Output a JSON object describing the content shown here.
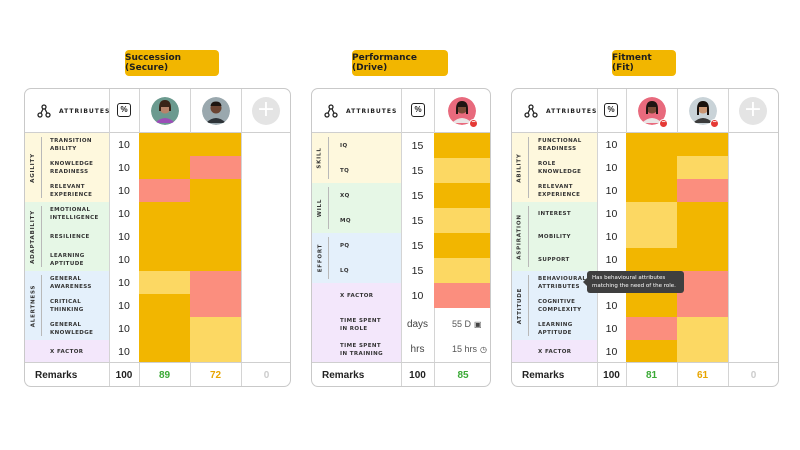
{
  "titles": {
    "succession": "Succession (Secure)",
    "performance": "Performance (Drive)",
    "fitment": "Fitment (Fit)"
  },
  "colors": {
    "high": "#f2b600",
    "mid": "#fcd863",
    "low": "#fb8e7e",
    "score_green": "#3aa935",
    "score_amber": "#e8a500",
    "score_grey": "#cccccc",
    "agility_bg": "#fef8dd",
    "adaptability_bg": "#e6f7e6",
    "alertness_bg": "#e4f0fb",
    "xfactor_bg": "#f3e7fb"
  },
  "common": {
    "attributes_label": "ATTRIBUTES",
    "percent_icon": "%",
    "add_icon": "+",
    "remarks_label": "Remarks",
    "remarks_weight": "100"
  },
  "succession": {
    "groups": [
      "AGILITY",
      "ADAPTABILITY",
      "ALERTNESS"
    ],
    "rows": [
      {
        "name": "TRANSITION\nABILITY",
        "weight": "10"
      },
      {
        "name": "KNOWLEDGE\nREADINESS",
        "weight": "10"
      },
      {
        "name": "RELEVANT\nEXPERIENCE",
        "weight": "10"
      },
      {
        "name": "EMOTIONAL\nINTELLIGENCE",
        "weight": "10"
      },
      {
        "name": "RESILIENCE",
        "weight": "10"
      },
      {
        "name": "LEARNING\nAPTITUDE",
        "weight": "10"
      },
      {
        "name": "GENERAL\nAWARENESS",
        "weight": "10"
      },
      {
        "name": "CRITICAL\nTHINKING",
        "weight": "10"
      },
      {
        "name": "GENERAL\nKNOWLEDGE",
        "weight": "10"
      },
      {
        "name": "X FACTOR",
        "weight": "10"
      }
    ],
    "cells": [
      [
        "high",
        "high"
      ],
      [
        "high",
        "low"
      ],
      [
        "low",
        "high"
      ],
      [
        "high",
        "high"
      ],
      [
        "high",
        "high"
      ],
      [
        "high",
        "high"
      ],
      [
        "mid",
        "low"
      ],
      [
        "high",
        "low"
      ],
      [
        "high",
        "mid"
      ],
      [
        "high",
        "mid"
      ]
    ],
    "scores": [
      "89",
      "72",
      "0"
    ]
  },
  "performance": {
    "groups": [
      "SKILL",
      "WILL",
      "EFFORT"
    ],
    "rows": [
      {
        "name": "IQ",
        "weight": "15"
      },
      {
        "name": "TQ",
        "weight": "15"
      },
      {
        "name": "XQ",
        "weight": "15"
      },
      {
        "name": "MQ",
        "weight": "15"
      },
      {
        "name": "PQ",
        "weight": "15"
      },
      {
        "name": "LQ",
        "weight": "15"
      },
      {
        "name": "X FACTOR",
        "weight": "10"
      }
    ],
    "cells": [
      "high",
      "mid",
      "high",
      "mid",
      "high",
      "mid",
      "low"
    ],
    "time_role": {
      "name": "TIME SPENT\nIN ROLE",
      "unit": "days",
      "value": "55 D"
    },
    "time_training": {
      "name": "TIME SPENT\nIN TRAINING",
      "unit": "hrs",
      "value": "15 hrs"
    },
    "score": "85"
  },
  "fitment": {
    "groups": [
      "ABILITY",
      "ASPIRATION",
      "ATTITUDE"
    ],
    "rows": [
      {
        "name": "FUNCTIONAL\nREADINESS",
        "weight": "10"
      },
      {
        "name": "ROLE\nKNOWLEDGE",
        "weight": "10"
      },
      {
        "name": "RELEVANT\nEXPERIENCE",
        "weight": "10"
      },
      {
        "name": "INTEREST",
        "weight": "10"
      },
      {
        "name": "MOBILITY",
        "weight": "10"
      },
      {
        "name": "SUPPORT",
        "weight": "10"
      },
      {
        "name": "BEHAVIOURAL\nATTRIBUTES",
        "weight": "10"
      },
      {
        "name": "COGNITIVE\nCOMPLEXITY",
        "weight": "10"
      },
      {
        "name": "LEARNING\nAPTITUDE",
        "weight": "10"
      },
      {
        "name": "X FACTOR",
        "weight": "10"
      }
    ],
    "cells": [
      [
        "high",
        "high"
      ],
      [
        "high",
        "mid"
      ],
      [
        "high",
        "low"
      ],
      [
        "mid",
        "high"
      ],
      [
        "mid",
        "high"
      ],
      [
        "high",
        "high"
      ],
      [
        "high",
        "low"
      ],
      [
        "high",
        "low"
      ],
      [
        "low",
        "mid"
      ],
      [
        "high",
        "mid"
      ]
    ],
    "scores": [
      "81",
      "61",
      "0"
    ],
    "tooltip": "Has behavioural attributes\nmatching the need of the role."
  }
}
